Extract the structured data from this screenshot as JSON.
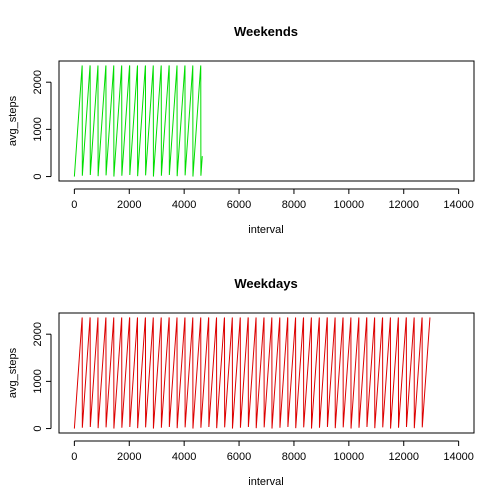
{
  "chart_data": [
    {
      "type": "line",
      "title": "Weekends",
      "xlabel": "interval",
      "ylabel": "avg_steps",
      "xlim": [
        0,
        14000
      ],
      "ylim": [
        0,
        2355
      ],
      "xticks": [
        0,
        2000,
        4000,
        6000,
        8000,
        10000,
        12000,
        14000
      ],
      "yticks": [
        0,
        1000,
        2000
      ],
      "x_tick_labels": [
        "0",
        "2000",
        "4000",
        "6000",
        "8000",
        "10000",
        "12000",
        "14000"
      ],
      "y_tick_labels": [
        "0",
        "1000",
        "2000"
      ],
      "grid": false,
      "series": [
        {
          "color": "#00dd00",
          "x_start": 0,
          "x_end": 4660,
          "x_step": 5,
          "period_x": 288,
          "y_min": 0,
          "y_max": 2355,
          "pattern": "sawtooth: each period of 288 intervals rises linearly from 0 to 2355, then drops back to 0"
        }
      ]
    },
    {
      "type": "line",
      "title": "Weekdays",
      "xlabel": "interval",
      "ylabel": "avg_steps",
      "xlim": [
        0,
        14000
      ],
      "ylim": [
        0,
        2355
      ],
      "xticks": [
        0,
        2000,
        4000,
        6000,
        8000,
        10000,
        12000,
        14000
      ],
      "yticks": [
        0,
        1000,
        2000
      ],
      "x_tick_labels": [
        "0",
        "2000",
        "4000",
        "6000",
        "8000",
        "10000",
        "12000",
        "14000"
      ],
      "y_tick_labels": [
        "0",
        "1000",
        "2000"
      ],
      "grid": false,
      "series": [
        {
          "color": "#dd0000",
          "x_start": 0,
          "x_end": 12955,
          "x_step": 5,
          "period_x": 288,
          "y_min": 0,
          "y_max": 2355,
          "pattern": "sawtooth: each period of 288 intervals rises linearly from 0 to 2355, then drops back to 0"
        }
      ]
    }
  ]
}
